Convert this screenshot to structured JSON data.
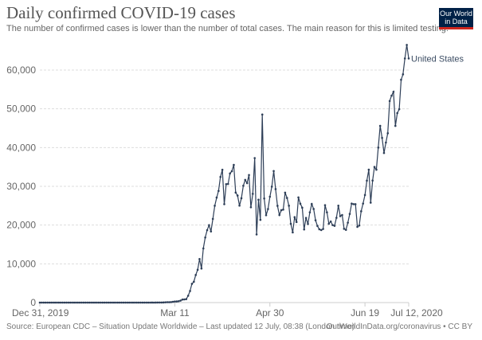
{
  "header": {
    "title": "Daily confirmed COVID-19 cases",
    "subtitle": "The number of confirmed cases is lower than the number of total cases. The main reason for this is limited testing.",
    "logo_text": "Our World in Data"
  },
  "footer": {
    "source": "Source: European CDC – Situation Update Worldwide – Last updated 12 July, 08:38 (London time)",
    "credit": "OurWorldInData.org/coronavirus • CC BY"
  },
  "colors": {
    "line": "#2d3e57",
    "grid": "#dddddd",
    "logo_bg": "#002147",
    "logo_bar": "#ce261e"
  },
  "chart_data": {
    "type": "line",
    "title": "Daily confirmed COVID-19 cases",
    "xlabel": "",
    "ylabel": "",
    "x_start": "2019-12-31",
    "x_step": "1 day",
    "x_end": "2020-07-12",
    "ylim": [
      0,
      65000
    ],
    "grid": "horizontal dotted",
    "y_ticks": [
      0,
      10000,
      20000,
      30000,
      40000,
      50000,
      60000
    ],
    "y_tick_labels": [
      "0",
      "10,000",
      "20,000",
      "30,000",
      "40,000",
      "50,000",
      "60,000"
    ],
    "x_ticks": [
      {
        "label": "Dec 31, 2019",
        "day": 0
      },
      {
        "label": "Mar 11",
        "day": 71
      },
      {
        "label": "Apr 30",
        "day": 121
      },
      {
        "label": "Jun 19",
        "day": 171
      },
      {
        "label": "Jul 12, 2020",
        "day": 194
      }
    ],
    "series": [
      {
        "name": "United States",
        "values": [
          0,
          0,
          0,
          0,
          0,
          0,
          0,
          0,
          0,
          0,
          0,
          0,
          0,
          0,
          0,
          0,
          0,
          0,
          0,
          0,
          0,
          1,
          0,
          0,
          0,
          1,
          1,
          0,
          0,
          0,
          0,
          0,
          1,
          0,
          0,
          0,
          0,
          0,
          0,
          0,
          0,
          1,
          0,
          0,
          0,
          0,
          0,
          0,
          0,
          0,
          0,
          0,
          0,
          0,
          0,
          0,
          0,
          0,
          0,
          3,
          0,
          3,
          20,
          14,
          22,
          34,
          74,
          105,
          95,
          121,
          200,
          271,
          287,
          351,
          511,
          777,
          823,
          887,
          1766,
          2988,
          4835,
          5374,
          7123,
          8459,
          11236,
          8789,
          13963,
          16797,
          18695,
          19979,
          18360,
          21595,
          24998,
          27103,
          28819,
          32425,
          34272,
          25398,
          30561,
          30613,
          33323,
          33901,
          35527,
          28391,
          27620,
          25023,
          26922,
          30148,
          31667,
          30833,
          32922,
          24601,
          28065,
          37289,
          17588,
          26543,
          21352,
          48529,
          26857,
          22541,
          24132,
          27326,
          29917,
          33955,
          29288,
          24972,
          22593,
          23841,
          24001,
          28369,
          27000,
          25000,
          20329,
          18117,
          22048,
          20782,
          27143,
          25508,
          24487,
          18873,
          21841,
          20289,
          23285,
          25434,
          24147,
          21236,
          19790,
          18910,
          18721,
          19000,
          25137,
          23285,
          20350,
          20921,
          20000,
          19807,
          21882,
          25000,
          22302,
          22600,
          19044,
          18763,
          20614,
          22883,
          25540,
          25396,
          25383,
          19543,
          19890,
          23559,
          25559,
          27762,
          31471,
          34300,
          25800,
          31500,
          35000,
          34300,
          40000,
          45600,
          42500,
          38600,
          41300,
          43700,
          52000,
          53400,
          54400,
          45600,
          48900,
          49900,
          57500,
          58900,
          63000,
          66500,
          63000
        ]
      }
    ]
  }
}
